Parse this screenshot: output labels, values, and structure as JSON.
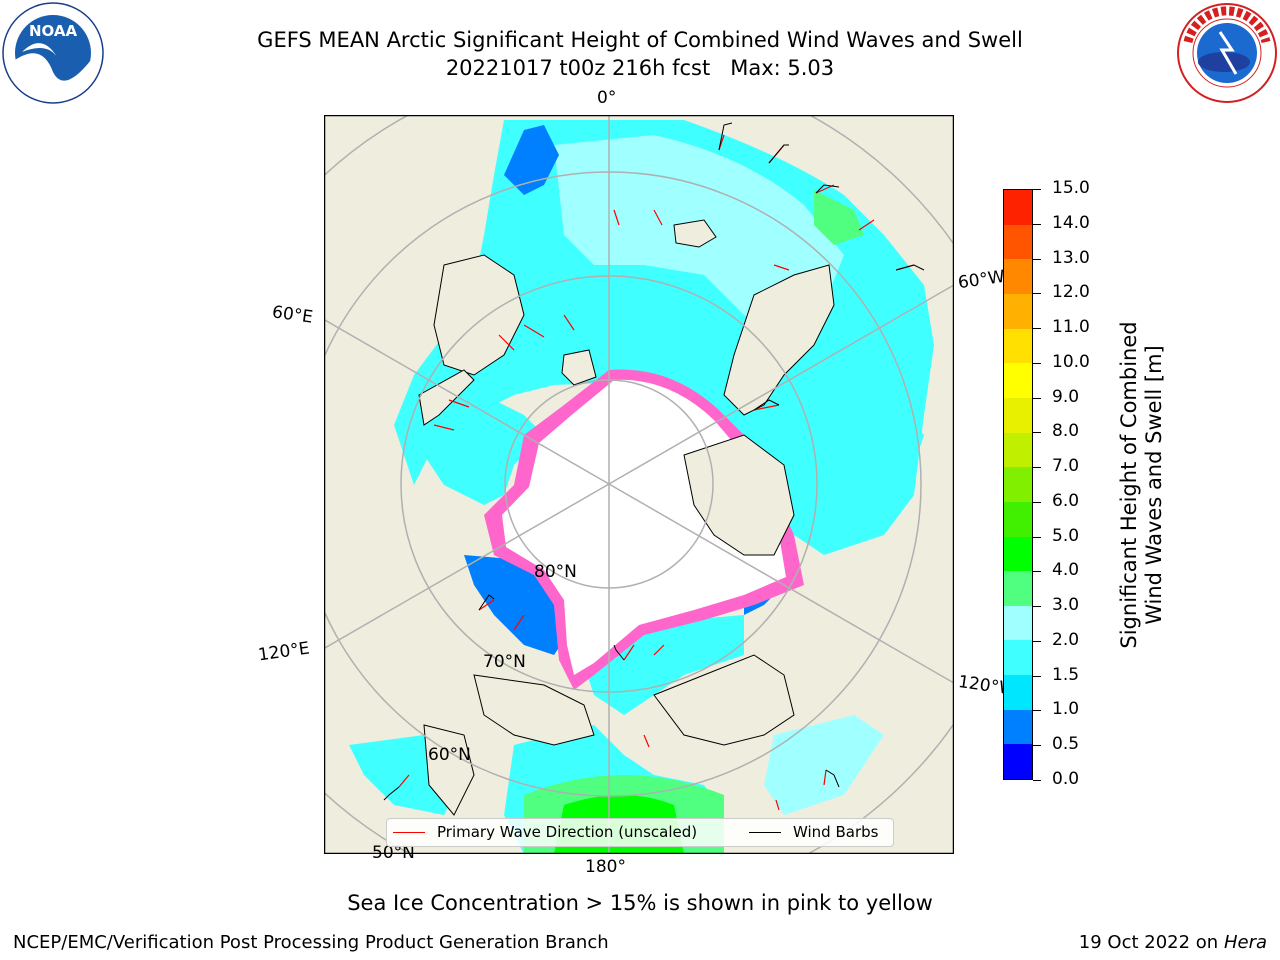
{
  "title": {
    "line1": "GEFS MEAN Arctic Significant Height of Combined Wind Waves and Swell",
    "line2": "20221017 t00z 216h fcst   Max: 5.03"
  },
  "logos": {
    "left": {
      "name": "noaa-logo",
      "text": "NOAA",
      "ring_text": "NATIONAL OCEANIC AND ATMOSPHERIC ADMINISTRATION · U.S. DEPARTMENT OF COMMERCE"
    },
    "right": {
      "name": "nws-logo",
      "ring_text": "NATIONAL WEATHER SERVICE"
    }
  },
  "map": {
    "projection": "north-polar-stereographic",
    "graticule_labels": {
      "lon_top": "0°",
      "lon_left_upper": "60°E",
      "lon_left_lower": "120°E",
      "lon_right_upper": "60°W",
      "lon_right_lower": "120°W",
      "lon_bottom": "180°",
      "lat_80": "80°N",
      "lat_70": "70°N",
      "lat_60": "60°N",
      "lat_50": "50°N"
    },
    "colors": {
      "land": "#efedde",
      "ice": "#ffffff",
      "grid": "#b0b0b0",
      "ice_edge_pink": "#ff66cc",
      "ice_edge_yellow": "#ffcc66"
    }
  },
  "legend": {
    "wave_label": "Primary Wave Direction (unscaled)",
    "wave_color": "#ff0000",
    "barb_label": "Wind Barbs",
    "barb_color": "#000000"
  },
  "colorbar": {
    "label_line1": "Significant Height of Combined",
    "label_line2": "Wind Waves and Swell [m]",
    "ticks": [
      "0.0",
      "0.5",
      "1.0",
      "1.5",
      "2.0",
      "3.0",
      "4.0",
      "5.0",
      "6.0",
      "7.0",
      "8.0",
      "9.0",
      "10.0",
      "11.0",
      "12.0",
      "13.0",
      "14.0",
      "15.0"
    ],
    "colors": [
      "#0000ff",
      "#0080ff",
      "#00e6ff",
      "#40ffff",
      "#a0ffff",
      "#50ff80",
      "#00ff00",
      "#40f000",
      "#80f000",
      "#c0f000",
      "#e8f000",
      "#ffff00",
      "#ffe000",
      "#ffb000",
      "#ff8800",
      "#ff5500",
      "#ff2200"
    ]
  },
  "footer": {
    "note": "Sea Ice Concentration > 15% is shown in pink to yellow",
    "org": "NCEP/EMC/Verification Post Processing Product Generation Branch",
    "date": "19 Oct 2022 on ",
    "machine": "Hera"
  }
}
